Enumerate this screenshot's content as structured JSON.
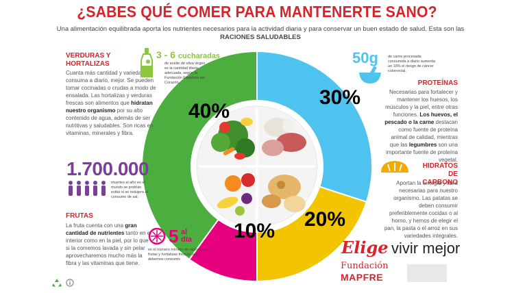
{
  "title": "¿SABES QUÉ COMER PARA MANTENERTE SANO?",
  "subtitle": {
    "text": "Una alimentación equilibrada aporta los nutrientes necesarios para la actividad diaria y para conservar un buen estado de salud. Esta son las",
    "bold": "RACIONES SALUDABLES"
  },
  "colors": {
    "red": "#d8232a",
    "green": "#4bae3f",
    "blue": "#4fc3ef",
    "yellow": "#f2c500",
    "magenta": "#e6007e",
    "purple": "#7b3f98",
    "lime": "#8cc63f",
    "orange": "#f2a900"
  },
  "chart_data": {
    "type": "pie",
    "title": "¿SABES QUÉ COMER PARA MANTENERTE SANO?",
    "categories": [
      "Verduras y hortalizas",
      "Proteínas",
      "Hidratos de carbono",
      "Frutas"
    ],
    "values": [
      40,
      30,
      20,
      10
    ],
    "labels": [
      "40%",
      "30%",
      "20%",
      "10%"
    ]
  },
  "verduras": {
    "heading_line1": "VERDURAS Y",
    "heading_line2": "HORTALIZAS",
    "body_pre": "Cuanta más cantidad y variedad se consuma a diario, mejor. Se pueden tomar cocinadas o crudas a modo de ensalada. Las hortalizas y verduras frescas son alimentos que",
    "body_bold": "hidratan nuestro organismo",
    "body_post": "por su alto contenido de agua, además de ser nutritivas y saludables. Son ricas en vitaminas, minerales y fibra."
  },
  "aceite": {
    "amount": "3 - 6",
    "unit": "cucharadas",
    "note": "de aceite de oliva virgen es la cantidad diaria adecuada, según la Fundación Española del Corazón."
  },
  "carne": {
    "amount": "50g",
    "note": "de carne procesada consumida a diario aumenta un 18% el riesgo de cáncer colorrectal."
  },
  "proteinas": {
    "heading": "PROTEÍNAS",
    "body_pre": "Necesarias para fortalecer y mantener los huesos, los músculos y la piel, entre otras funciones.",
    "body_bold": "Los huevos, el pescado o la carne",
    "body_mid": "destacan como fuente de proteína animal de calidad, mientras que las",
    "body_bold2": "legumbres",
    "body_post": "son una importante fuente de proteína vegetal."
  },
  "personas": {
    "number": "1.700.000",
    "note": "muertes al año en el mundo se podrían evitar si se redujera el consumo de sal."
  },
  "hidratos": {
    "heading_line1": "HIDRATOS",
    "heading_line2": "DE CARBONO",
    "body": "Aportan la energía y fibra necesarias para nuestro organismo. Las patatas se deben consumir preferiblemente cocidas o al horno, y hemos de elegir el pan, la pasta o el arroz en sus variedades integrales."
  },
  "frutas": {
    "heading": "FRUTAS",
    "body_pre": "La fruta cuenta con una",
    "body_bold": "gran cantidad de nutrientes",
    "body_post": "tanto en el interior como en la piel, por lo que si la comemos lavada y sin pelar aprovecharemos mucho más la fibra y las vitaminas que tiene."
  },
  "cinco": {
    "number": "5",
    "unit_line1": "al",
    "unit_line2": "día",
    "note": "es el número mínimo de raciones de frutas y hortalizas frescas que debemos consumir."
  },
  "tagline": {
    "script": "Elige",
    "rest": "vivir mejor"
  },
  "fundacion": {
    "line1": "Fundación",
    "line2": "MAPFRE"
  },
  "icons": {
    "oil": "oil-bottle-icon",
    "meat": "mortar-icon",
    "bread": "bread-icon",
    "lemon": "lemon-slice-icon",
    "people": "people-icon",
    "recycle": "recycle-icon"
  }
}
